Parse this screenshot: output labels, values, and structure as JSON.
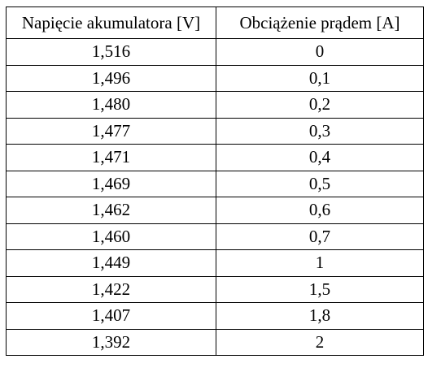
{
  "table": {
    "headers": [
      "Napięcie akumulatora [V]",
      "Obciążenie prądem [A]"
    ],
    "rows": [
      [
        "1,516",
        "0"
      ],
      [
        "1,496",
        "0,1"
      ],
      [
        "1,480",
        "0,2"
      ],
      [
        "1,477",
        "0,3"
      ],
      [
        "1,471",
        "0,4"
      ],
      [
        "1,469",
        "0,5"
      ],
      [
        "1,462",
        "0,6"
      ],
      [
        "1,460",
        "0,7"
      ],
      [
        "1,449",
        "1"
      ],
      [
        "1,422",
        "1,5"
      ],
      [
        "1,407",
        "1,8"
      ],
      [
        "1,392",
        "2"
      ]
    ]
  }
}
